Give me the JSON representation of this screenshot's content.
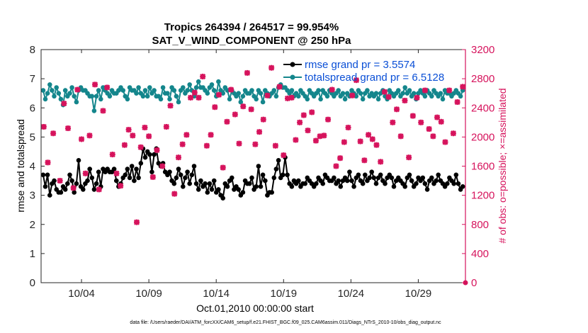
{
  "chart_data": {
    "type": "line",
    "title": "Tropics 264394 / 264517 = 99.954%",
    "subtitle": "SAT_V_WIND_COMPONENT @ 250 hPa",
    "xlabel": "Oct.01,2010 00:00:00 start",
    "ylabel": "rmse and totalspread",
    "y2label": "# of obs: o=possible; ×=assimilated",
    "xlim": [
      1,
      32.5
    ],
    "ylim": [
      0,
      8
    ],
    "y2lim": [
      0,
      3200
    ],
    "x_ticks": [
      4,
      9,
      14,
      19,
      24,
      29
    ],
    "x_tick_labels": [
      "10/04",
      "10/09",
      "10/14",
      "10/19",
      "10/24",
      "10/29"
    ],
    "y_ticks": [
      0,
      1,
      2,
      3,
      4,
      5,
      6,
      7,
      8
    ],
    "y2_ticks": [
      0,
      400,
      800,
      1200,
      1600,
      2000,
      2400,
      2800,
      3200
    ],
    "legend_location": "top-right",
    "footnote": "data file: /Users/raeder/DAI/ATM_forcXX/CAM6_setup/f.e21.FHIST_BGC.f09_025.CAM6assim.011/Diags_NTrS_2010-10/obs_diag_output.nc",
    "colors": {
      "rmse": "#000000",
      "totalspread": "#14868c",
      "nobs": "#d6135c",
      "legend_text": "#0a4fd6"
    },
    "series": [
      {
        "name": "rmse grand pr = 3.5574",
        "axis": "left",
        "marker": "circle",
        "values": [
          3.7,
          3.3,
          3.7,
          3.0,
          3.4,
          3.5,
          3.2,
          3.1,
          3.1,
          3.3,
          3.2,
          3.4,
          3.7,
          3.5,
          3.1,
          3.4,
          4.2,
          3.3,
          3.2,
          3.4,
          3.5,
          3.9,
          3.6,
          3.2,
          3.4,
          3.8,
          3.3,
          3.9,
          3.8,
          3.9,
          3.8,
          3.8,
          3.9,
          3.5,
          3.3,
          3.4,
          3.6,
          3.7,
          3.9,
          3.6,
          4.0,
          3.5,
          3.9,
          3.6,
          4.1,
          4.6,
          4.3,
          4.5,
          4.4,
          3.8,
          4.4,
          4.6,
          4.1,
          4.0,
          4.1,
          3.8,
          3.7,
          3.8,
          3.5,
          3.4,
          3.6,
          3.9,
          3.7,
          3.3,
          3.6,
          3.8,
          3.4,
          3.7,
          4.0,
          3.4,
          3.2,
          3.5,
          3.3,
          3.4,
          3.1,
          3.4,
          3.2,
          3.5,
          3.1,
          3.2,
          3.0,
          2.9,
          3.4,
          3.3,
          3.5,
          3.6,
          3.2,
          3.3,
          3.2,
          3.0,
          3.1,
          3.5,
          3.4,
          3.4,
          3.6,
          3.2,
          3.3,
          4.0,
          3.3,
          3.7,
          3.5,
          3.0,
          3.1,
          3.1,
          3.6,
          3.9,
          4.2,
          3.6,
          3.7,
          4.3,
          3.7,
          3.4,
          3.3,
          3.5,
          3.4,
          3.5,
          3.3,
          3.4,
          3.4,
          3.6,
          3.5,
          3.4,
          3.3,
          3.4,
          3.6,
          3.5,
          3.4,
          3.7,
          3.6,
          3.5,
          3.5,
          3.6,
          3.4,
          3.5,
          3.3,
          3.5,
          3.6,
          3.5,
          3.8,
          3.5,
          3.3,
          3.6,
          3.7,
          3.5,
          3.4,
          3.7,
          3.5,
          3.6,
          3.8,
          3.6,
          3.4,
          3.6,
          3.7,
          3.5,
          3.4,
          3.6,
          3.7,
          3.6,
          3.3,
          3.5,
          3.6,
          3.5,
          3.4,
          3.3,
          3.6,
          3.7,
          3.5,
          3.3,
          3.4,
          3.6,
          3.5,
          3.6,
          3.4,
          3.2,
          3.5,
          3.6,
          3.4,
          3.5,
          3.7,
          3.5,
          3.4,
          3.3,
          3.4,
          3.6,
          3.5,
          3.4,
          3.7,
          3.4,
          3.2,
          3.3
        ]
      },
      {
        "name": "totalspread grand pr = 6.5128",
        "axis": "left",
        "marker": "circle",
        "values": [
          6.6,
          6.3,
          6.5,
          6.8,
          6.6,
          6.4,
          6.7,
          6.5,
          6.3,
          6.1,
          6.6,
          6.4,
          6.5,
          6.7,
          6.4,
          6.2,
          6.6,
          6.7,
          6.6,
          6.6,
          6.5,
          6.4,
          6.4,
          5.9,
          6.4,
          6.6,
          6.3,
          6.7,
          6.6,
          6.5,
          6.4,
          6.6,
          6.5,
          6.5,
          6.6,
          6.7,
          6.6,
          6.4,
          6.3,
          6.7,
          6.6,
          6.6,
          6.5,
          6.7,
          6.5,
          6.4,
          6.6,
          6.4,
          6.7,
          6.5,
          6.6,
          6.4,
          6.4,
          6.3,
          6.7,
          6.5,
          6.5,
          6.3,
          6.7,
          6.6,
          6.4,
          6.2,
          6.6,
          6.7,
          6.5,
          6.6,
          6.8,
          6.6,
          6.4,
          6.7,
          6.9,
          6.7,
          6.7,
          6.6,
          6.5,
          6.7,
          6.8,
          6.6,
          6.4,
          6.9,
          6.6,
          6.5,
          6.7,
          6.6,
          6.3,
          6.6,
          6.5,
          6.4,
          6.5,
          6.2,
          6.4,
          6.6,
          6.5,
          6.5,
          6.6,
          6.4,
          6.3,
          6.6,
          6.5,
          6.2,
          6.6,
          6.5,
          6.4,
          6.5,
          6.6,
          6.4,
          6.7,
          6.8,
          6.7,
          6.7,
          6.6,
          6.5,
          6.6,
          6.4,
          6.5,
          6.4,
          6.6,
          6.5,
          6.4,
          6.3,
          6.6,
          6.5,
          6.4,
          6.5,
          6.6,
          6.3,
          6.6,
          6.5,
          6.4,
          6.6,
          6.5,
          6.4,
          6.5,
          6.6,
          6.4,
          6.5,
          6.3,
          6.5,
          6.4,
          6.6,
          6.5,
          6.4,
          6.6,
          6.5,
          6.3,
          6.5,
          6.6,
          6.4,
          6.5,
          6.4,
          6.5,
          6.3,
          6.5,
          6.6,
          6.4,
          6.3,
          6.6,
          6.5,
          6.4,
          6.5,
          6.6,
          6.4,
          6.5,
          6.7,
          6.5,
          6.6,
          6.4,
          6.5,
          6.3,
          6.5,
          6.6,
          6.5,
          6.4,
          6.6,
          6.5,
          6.4,
          6.6,
          6.5,
          6.4,
          6.5,
          6.3,
          6.6,
          6.5,
          6.5,
          6.4,
          6.5,
          6.6,
          6.5,
          6.4,
          6.6
        ]
      },
      {
        "name": "# of obs assimilated",
        "axis": "right",
        "marker": "x",
        "x": [
          1.2,
          1.5,
          1.9,
          2.4,
          2.7,
          3.0,
          3.4,
          3.7,
          4.0,
          4.3,
          4.6,
          5.0,
          5.3,
          5.6,
          5.9,
          6.3,
          6.6,
          6.9,
          7.2,
          7.5,
          7.8,
          8.1,
          8.4,
          8.7,
          9.0,
          9.3,
          9.6,
          10.0,
          10.3,
          10.6,
          10.9,
          11.2,
          11.5,
          11.8,
          12.1,
          12.4,
          12.7,
          13.0,
          13.3,
          13.6,
          13.9,
          14.2,
          14.5,
          14.8,
          15.1,
          15.4,
          15.7,
          16.0,
          16.3,
          16.6,
          16.9,
          17.2,
          17.5,
          17.8,
          18.1,
          18.4,
          18.7,
          19.0,
          19.3,
          19.6,
          19.9,
          20.2,
          20.5,
          20.8,
          21.1,
          21.4,
          21.7,
          22.0,
          22.3,
          22.6,
          22.9,
          23.2,
          23.5,
          23.8,
          24.1,
          24.4,
          24.7,
          25.0,
          25.3,
          25.6,
          25.9,
          26.2,
          26.5,
          26.8,
          27.1,
          27.4,
          27.7,
          28.0,
          28.3,
          28.6,
          28.9,
          29.2,
          29.5,
          29.8,
          30.1,
          30.4,
          30.7,
          31.0,
          31.3,
          31.6,
          31.9,
          32.3
        ],
        "values": [
          2140,
          1650,
          2050,
          1400,
          2460,
          2120,
          1300,
          2650,
          1970,
          1500,
          2020,
          2720,
          1280,
          2360,
          2680,
          1760,
          1500,
          1330,
          1890,
          2100,
          2020,
          830,
          1860,
          2130,
          2010,
          1450,
          1820,
          1600,
          2140,
          2430,
          1220,
          1720,
          1900,
          2030,
          2540,
          2610,
          2540,
          2830,
          1880,
          2030,
          2410,
          2580,
          1580,
          2210,
          2650,
          2310,
          1910,
          2420,
          2880,
          2380,
          1900,
          2070,
          2240,
          2570,
          2950,
          1880,
          2690,
          1750,
          2530,
          2540,
          1960,
          2200,
          2300,
          2090,
          2340,
          1950,
          2010,
          2020,
          2240,
          2650,
          1600,
          1710,
          1930,
          2130,
          2570,
          2780,
          1940,
          1680,
          2030,
          1970,
          1890,
          1660,
          2620,
          2550,
          2200,
          2380,
          2010,
          2500,
          1720,
          2290,
          2540,
          2200,
          2640,
          2110,
          2010,
          2270,
          2210,
          1930,
          2640,
          2050,
          2480,
          2690
        ]
      }
    ]
  }
}
